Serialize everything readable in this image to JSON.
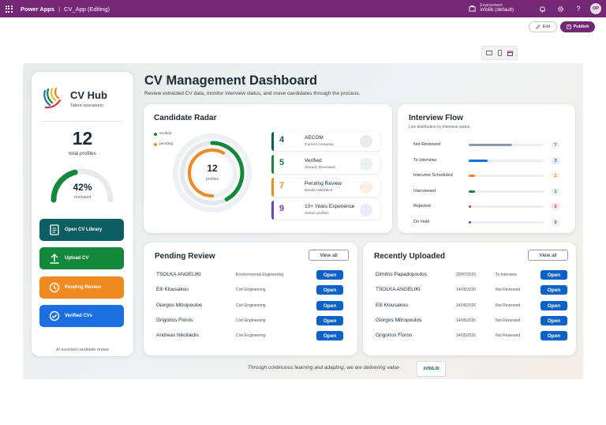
{
  "topbar": {
    "brand": "Power Apps",
    "separator": "|",
    "app_name": "CV_App (Editing)",
    "environment_label": "Environment",
    "environment_value": "infolib (default)",
    "avatar_initials": "OP",
    "color": "#742774"
  },
  "commands": {
    "edit_label": "Edit",
    "publish_label": "Publish"
  },
  "sidebar": {
    "title": "CV Hub",
    "subtitle": "Talent operations",
    "total_value": "12",
    "total_label": "total profiles",
    "reviewed_fraction": 0.42,
    "reviewed_percent": "42%",
    "reviewed_label": "reviewed",
    "nav": [
      {
        "label": "Open CV Library",
        "icon": "document-icon",
        "color": "#0d5e63"
      },
      {
        "label": "Upload CV",
        "icon": "upload-icon",
        "color": "#12883b"
      },
      {
        "label": "Pending Review",
        "icon": "clock-icon",
        "color": "#f0891f"
      },
      {
        "label": "Verified CVs",
        "icon": "check-circle-icon",
        "color": "#1b6fe0"
      }
    ],
    "footer": "AI assisted candidate review"
  },
  "header": {
    "title": "CV Management Dashboard",
    "subtitle": "Review extracted CV data, monitor interview status, and move candidates through the process."
  },
  "radar": {
    "title": "Candidate Radar",
    "legend": [
      {
        "label": "verified",
        "color": "#12883b"
      },
      {
        "label": "pending",
        "color": "#f0891f"
      }
    ],
    "total": "12",
    "center_label": "profiles",
    "verified_fraction": 0.42,
    "pending_fraction": 0.58,
    "stats": [
      {
        "value": "4",
        "label": "AECOM",
        "sub": "Current company",
        "color": "#0d5e63",
        "tint": "#e9ebee"
      },
      {
        "value": "5",
        "label": "Verified",
        "sub": "Already Reviewed",
        "color": "#12883b",
        "tint": "#e6f4ea"
      },
      {
        "value": "7",
        "label": "Pending Review",
        "sub": "Needs validation",
        "color": "#f0891f",
        "tint": "#fdf0e2"
      },
      {
        "value": "9",
        "label": "10+ Years Experience",
        "sub": "Senior profiles",
        "color": "#6b3fc9",
        "tint": "#efeafb"
      }
    ]
  },
  "flow": {
    "title": "Interview Flow",
    "subtitle": "Live distribution by interview status",
    "max": 7,
    "rows": [
      {
        "label": "Not Reviewed",
        "value": 7,
        "color": "#8e9aab",
        "badge_bg": "#eef0f3",
        "badge_fg": "#566"
      },
      {
        "label": "To Interview",
        "value": 3,
        "color": "#1b6fe0",
        "badge_bg": "#e3edfb",
        "badge_fg": "#1b6fe0"
      },
      {
        "label": "Interview Scheduled",
        "value": 1,
        "color": "#f0891f",
        "badge_bg": "#fdf0e2",
        "badge_fg": "#d9731a"
      },
      {
        "label": "Interviewed",
        "value": 1,
        "color": "#12883b",
        "badge_bg": "#e6f4ea",
        "badge_fg": "#12883b"
      },
      {
        "label": "Rejected",
        "value": 0,
        "color": "#e0342f",
        "badge_bg": "#fde6e5",
        "badge_fg": "#e0342f"
      },
      {
        "label": "On Hold",
        "value": 0,
        "color": "#6b3fc9",
        "badge_bg": "#eef0f3",
        "badge_fg": "#566"
      }
    ]
  },
  "pending": {
    "title": "Pending Review",
    "view_all": "View all",
    "open_label": "Open",
    "rows": [
      {
        "name": "TSOLKA ANGELIKI",
        "field": "Environmental Engineering"
      },
      {
        "name": "Elli Klousakou",
        "field": "Civil Engineering"
      },
      {
        "name": "Giorgos Mitropoulos",
        "field": "Civil Engineering"
      },
      {
        "name": "Grigorios Floros",
        "field": "Civil Engineering"
      },
      {
        "name": "Andreas Nikolaidis",
        "field": "Civil Engineering"
      }
    ]
  },
  "recent": {
    "title": "Recently Uploaded",
    "view_all": "View all",
    "open_label": "Open",
    "rows": [
      {
        "name": "Dimitris Papadopoulos",
        "date": "20/07/2026",
        "status": "To Interview"
      },
      {
        "name": "TSOLKA ANGELIKI",
        "date": "14/05/2026",
        "status": "Not Reviewed"
      },
      {
        "name": "Elli Klousakou",
        "date": "14/05/2026",
        "status": "Not Reviewed"
      },
      {
        "name": "Giorgos Mitropoulos",
        "date": "14/05/2026",
        "status": "Not Reviewed"
      },
      {
        "name": "Grigorios Floros",
        "date": "14/05/2026",
        "status": "Not Reviewed"
      }
    ]
  },
  "footer": {
    "tagline": "Through continuous learning and adapting, we are delivering value",
    "logo_text": "infoLib"
  }
}
